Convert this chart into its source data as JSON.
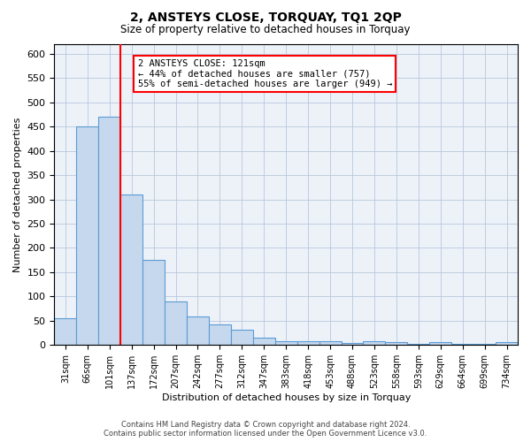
{
  "title": "2, ANSTEYS CLOSE, TORQUAY, TQ1 2QP",
  "subtitle": "Size of property relative to detached houses in Torquay",
  "xlabel": "Distribution of detached houses by size in Torquay",
  "ylabel": "Number of detached properties",
  "categories": [
    "31sqm",
    "66sqm",
    "101sqm",
    "137sqm",
    "172sqm",
    "207sqm",
    "242sqm",
    "277sqm",
    "312sqm",
    "347sqm",
    "383sqm",
    "418sqm",
    "453sqm",
    "488sqm",
    "523sqm",
    "558sqm",
    "593sqm",
    "629sqm",
    "664sqm",
    "699sqm",
    "734sqm"
  ],
  "values": [
    55,
    450,
    470,
    310,
    175,
    90,
    58,
    42,
    32,
    15,
    8,
    8,
    8,
    4,
    7,
    5,
    3,
    5,
    3,
    2,
    6
  ],
  "bar_color": "#c5d8ed",
  "bar_edge_color": "#5b9bd5",
  "vline_x_index": 2,
  "vline_color": "red",
  "ylim": [
    0,
    620
  ],
  "yticks": [
    0,
    50,
    100,
    150,
    200,
    250,
    300,
    350,
    400,
    450,
    500,
    550,
    600
  ],
  "annotation_title": "2 ANSTEYS CLOSE: 121sqm",
  "annotation_line1": "← 44% of detached houses are smaller (757)",
  "annotation_line2": "55% of semi-detached houses are larger (949) →",
  "annotation_box_color": "white",
  "annotation_box_edge_color": "red",
  "footer_line1": "Contains HM Land Registry data © Crown copyright and database right 2024.",
  "footer_line2": "Contains public sector information licensed under the Open Government Licence v3.0.",
  "background_color": "#edf2f9",
  "plot_bg_color": "white"
}
